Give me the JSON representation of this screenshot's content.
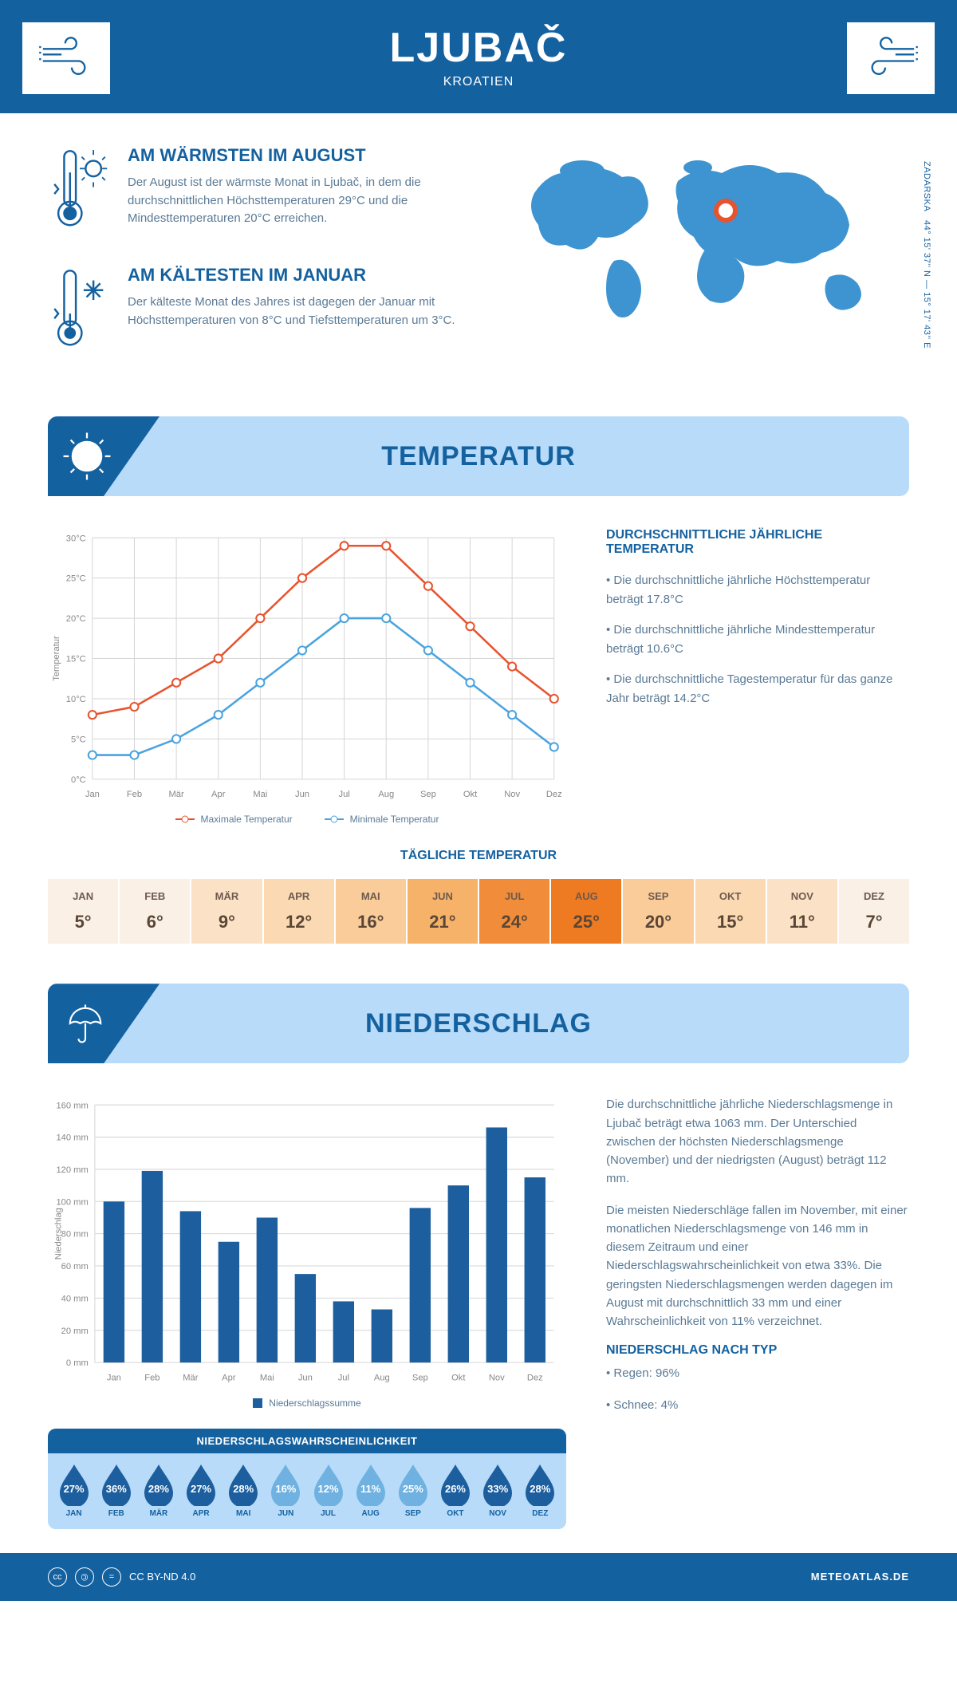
{
  "header": {
    "title": "LJUBAČ",
    "subtitle": "KROATIEN"
  },
  "coords": "44° 15' 37'' N — 15° 17' 43'' E",
  "region": "ZADARSKA",
  "warmest": {
    "title": "AM WÄRMSTEN IM AUGUST",
    "body": "Der August ist der wärmste Monat in Ljubač, in dem die durchschnittlichen Höchsttemperaturen 29°C und die Mindesttemperaturen 20°C erreichen."
  },
  "coldest": {
    "title": "AM KÄLTESTEN IM JANUAR",
    "body": "Der kälteste Monat des Jahres ist dagegen der Januar mit Höchsttemperaturen von 8°C und Tiefsttemperaturen um 3°C."
  },
  "temp_banner": "TEMPERATUR",
  "temp_chart": {
    "type": "line",
    "months": [
      "Jan",
      "Feb",
      "Mär",
      "Apr",
      "Mai",
      "Jun",
      "Jul",
      "Aug",
      "Sep",
      "Okt",
      "Nov",
      "Dez"
    ],
    "max": [
      8,
      9,
      12,
      15,
      20,
      25,
      29,
      29,
      24,
      19,
      14,
      10
    ],
    "min": [
      3,
      3,
      5,
      8,
      12,
      16,
      20,
      20,
      16,
      12,
      8,
      4
    ],
    "max_color": "#e8532f",
    "min_color": "#4aa3e0",
    "grid_color": "#d6d6d6",
    "ylabel": "Temperatur",
    "ylim": [
      0,
      30
    ],
    "ytick_step": 5,
    "y_suffix": "°C",
    "legend_max": "Maximale Temperatur",
    "legend_min": "Minimale Temperatur",
    "line_width": 2.5,
    "marker": "circle",
    "marker_size": 5,
    "marker_fill": "#ffffff"
  },
  "temp_facts": {
    "title": "DURCHSCHNITTLICHE JÄHRLICHE TEMPERATUR",
    "b1": "• Die durchschnittliche jährliche Höchsttemperatur beträgt 17.8°C",
    "b2": "• Die durchschnittliche jährliche Mindesttemperatur beträgt 10.6°C",
    "b3": "• Die durchschnittliche Tagestemperatur für das ganze Jahr beträgt 14.2°C"
  },
  "daily": {
    "title": "TÄGLICHE TEMPERATUR",
    "months": [
      "JAN",
      "FEB",
      "MÄR",
      "APR",
      "MAI",
      "JUN",
      "JUL",
      "AUG",
      "SEP",
      "OKT",
      "NOV",
      "DEZ"
    ],
    "values": [
      "5°",
      "6°",
      "9°",
      "12°",
      "16°",
      "21°",
      "24°",
      "25°",
      "20°",
      "15°",
      "11°",
      "7°"
    ],
    "colors": [
      "#faf0e6",
      "#faf0e6",
      "#fbe2c6",
      "#fad9b3",
      "#f9cc9a",
      "#f7b26a",
      "#f18d3a",
      "#ee7a22",
      "#f9cc9a",
      "#fad9b3",
      "#fbe2c6",
      "#faf0e6"
    ]
  },
  "precip_banner": "NIEDERSCHLAG",
  "precip_chart": {
    "type": "bar",
    "months": [
      "Jan",
      "Feb",
      "Mär",
      "Apr",
      "Mai",
      "Jun",
      "Jul",
      "Aug",
      "Sep",
      "Okt",
      "Nov",
      "Dez"
    ],
    "values": [
      100,
      119,
      94,
      75,
      90,
      55,
      38,
      33,
      96,
      110,
      146,
      115
    ],
    "bar_color": "#1c5e9e",
    "grid_color": "#d6d6d6",
    "ylabel": "Niederschlag",
    "ylim": [
      0,
      160
    ],
    "ytick_step": 20,
    "y_suffix": " mm",
    "bar_width": 0.55,
    "legend": "Niederschlagssumme"
  },
  "precip_text": {
    "p1": "Die durchschnittliche jährliche Niederschlagsmenge in Ljubač beträgt etwa 1063 mm. Der Unterschied zwischen der höchsten Niederschlagsmenge (November) und der niedrigsten (August) beträgt 112 mm.",
    "p2": "Die meisten Niederschläge fallen im November, mit einer monatlichen Niederschlagsmenge von 146 mm in diesem Zeitraum und einer Niederschlagswahrscheinlichkeit von etwa 33%. Die geringsten Niederschlagsmengen werden dagegen im August mit durchschnittlich 33 mm und einer Wahrscheinlichkeit von 11% verzeichnet.",
    "type_title": "NIEDERSCHLAG NACH TYP",
    "t1": "• Regen: 96%",
    "t2": "• Schnee: 4%"
  },
  "prob": {
    "title": "NIEDERSCHLAGSWAHRSCHEINLICHKEIT",
    "months": [
      "JAN",
      "FEB",
      "MÄR",
      "APR",
      "MAI",
      "JUN",
      "JUL",
      "AUG",
      "SEP",
      "OKT",
      "NOV",
      "DEZ"
    ],
    "values": [
      "27%",
      "36%",
      "28%",
      "27%",
      "28%",
      "16%",
      "12%",
      "11%",
      "25%",
      "26%",
      "33%",
      "28%"
    ],
    "colors": [
      "#1c5e9e",
      "#1c5e9e",
      "#1c5e9e",
      "#1c5e9e",
      "#1c5e9e",
      "#6fb1e0",
      "#6fb1e0",
      "#6fb1e0",
      "#6fb1e0",
      "#1c5e9e",
      "#1c5e9e",
      "#1c5e9e"
    ]
  },
  "footer": {
    "license": "CC BY-ND 4.0",
    "site": "METEOATLAS.DE"
  },
  "colors": {
    "primary": "#1461a0",
    "banner_bg": "#b7dbf8",
    "body_text": "#5a7a96",
    "marker_ring": "#e8532f"
  }
}
